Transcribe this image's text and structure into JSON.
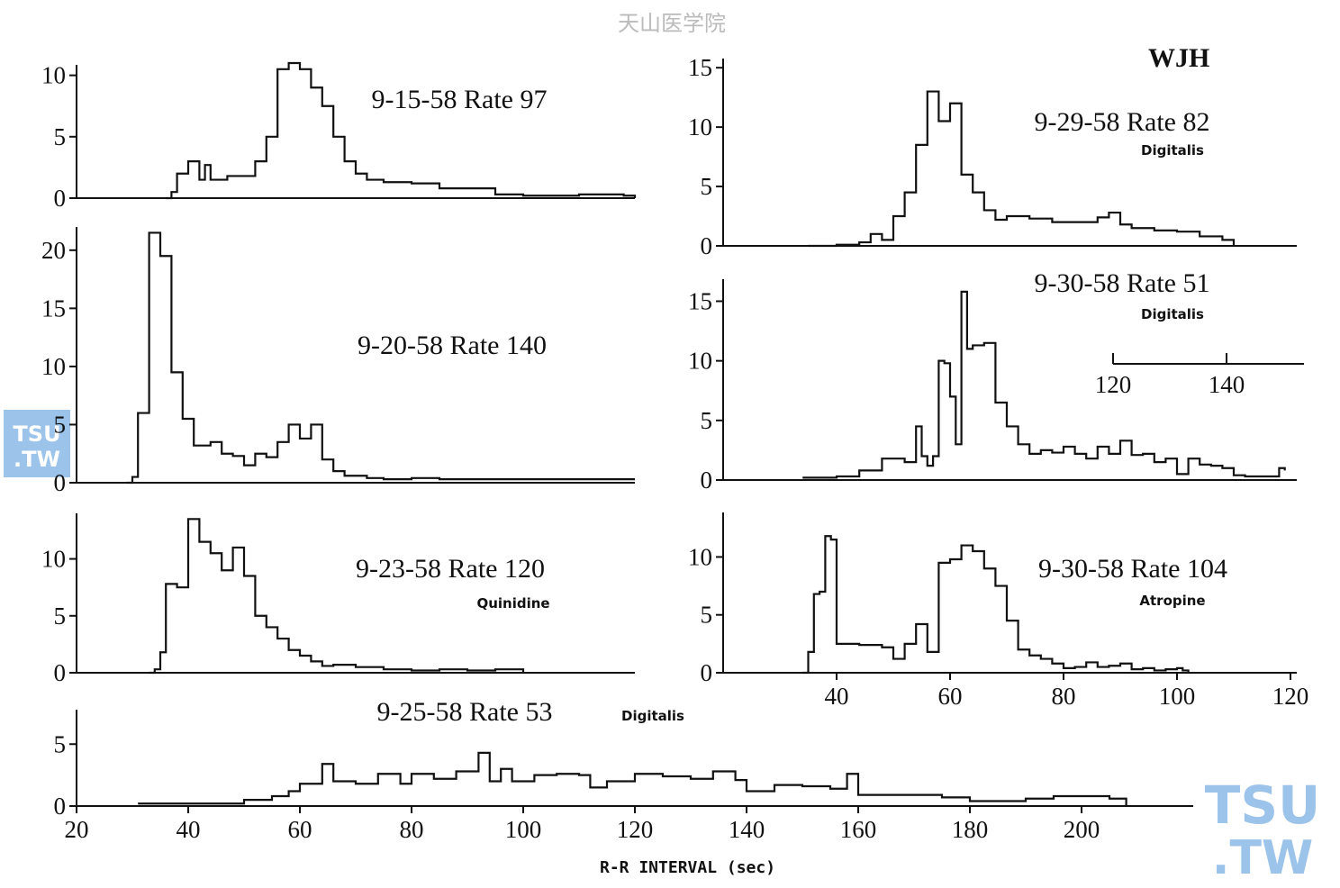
{
  "header": {
    "site_title": "天山医学院",
    "patient_id": "WJH"
  },
  "watermark": {
    "line1": "TSU",
    "line2": ".TW",
    "color": "#9cc3ea"
  },
  "bottom_axis_label": "R-R INTERVAL (sec)",
  "inset_scale": {
    "ticks": [
      "120",
      "140"
    ]
  },
  "chart_data": [
    {
      "type": "area",
      "title": "9-15-58 Rate 97",
      "note": "",
      "ylim": [
        0,
        11
      ],
      "yticks": [
        "0",
        "5",
        "10"
      ],
      "xlim": [
        20,
        120
      ],
      "x": [
        36,
        37,
        38,
        40,
        42,
        43,
        44,
        46,
        47,
        50,
        52,
        54,
        56,
        58,
        60,
        62,
        64,
        66,
        68,
        70,
        72,
        75,
        80,
        85,
        90,
        95,
        100,
        105,
        110,
        115,
        118,
        120
      ],
      "values": [
        0,
        0.5,
        2,
        3,
        1.5,
        2.7,
        1.5,
        1.5,
        1.8,
        1.8,
        3,
        5,
        10.5,
        11,
        10.5,
        9,
        7.5,
        5,
        3,
        2,
        1.5,
        1.3,
        1.2,
        0.8,
        0.8,
        0.3,
        0.2,
        0.2,
        0.3,
        0.3,
        0.2,
        0
      ]
    },
    {
      "type": "area",
      "title": "9-20-58 Rate 140",
      "note": "",
      "ylim": [
        0,
        22
      ],
      "yticks": [
        "0",
        "5",
        "10",
        "15",
        "20"
      ],
      "xlim": [
        20,
        120
      ],
      "x": [
        29,
        30,
        31,
        33,
        35,
        37,
        39,
        41,
        44,
        46,
        48,
        50,
        52,
        54,
        56,
        58,
        60,
        62,
        64,
        66,
        68,
        70,
        72,
        75,
        80,
        85,
        90,
        100,
        110,
        120
      ],
      "values": [
        0,
        0.5,
        6,
        21.5,
        19.5,
        9.5,
        5.5,
        3.2,
        3.5,
        2.5,
        2.3,
        1.5,
        2.5,
        2.2,
        3.5,
        5,
        3.8,
        5,
        2,
        1,
        0.6,
        0.6,
        0.4,
        0.3,
        0.4,
        0.3,
        0.3,
        0.3,
        0.3,
        0.3
      ]
    },
    {
      "type": "area",
      "title": "9-23-58 Rate 120",
      "note": "Quinidine",
      "ylim": [
        0,
        14
      ],
      "yticks": [
        "0",
        "5",
        "10"
      ],
      "xlim": [
        20,
        120
      ],
      "x": [
        33,
        34,
        35,
        36,
        38,
        40,
        42,
        44,
        46,
        48,
        50,
        52,
        54,
        56,
        58,
        60,
        62,
        64,
        66,
        70,
        75,
        80,
        85,
        90,
        95,
        97,
        100
      ],
      "values": [
        0,
        0.3,
        1.8,
        7.8,
        7.5,
        13.5,
        11.5,
        10.5,
        9,
        11,
        8.5,
        5,
        4,
        3,
        2,
        1.5,
        1,
        0.6,
        0.7,
        0.5,
        0.3,
        0.2,
        0.3,
        0.2,
        0.3,
        0.3,
        0
      ]
    },
    {
      "type": "area",
      "title": "9-25-58 Rate 53",
      "note": "Digitalis",
      "ylim": [
        0,
        8
      ],
      "yticks": [
        "0",
        "5"
      ],
      "xlim": [
        20,
        220
      ],
      "xticks": [
        "20",
        "40",
        "60",
        "80",
        "100",
        "120",
        "140",
        "160",
        "180",
        "200"
      ],
      "x": [
        31,
        40,
        50,
        55,
        58,
        60,
        62,
        64,
        66,
        70,
        74,
        78,
        80,
        84,
        88,
        92,
        94,
        96,
        98,
        102,
        106,
        110,
        112,
        115,
        120,
        125,
        130,
        134,
        138,
        140,
        145,
        150,
        155,
        158,
        160,
        165,
        170,
        175,
        180,
        185,
        190,
        195,
        200,
        205,
        208
      ],
      "values": [
        0.2,
        0.2,
        0.5,
        0.8,
        1.2,
        1.8,
        1.8,
        3.4,
        2,
        1.8,
        2.6,
        1.8,
        2.6,
        2.2,
        2.8,
        4.3,
        2,
        3,
        2,
        2.5,
        2.6,
        2.5,
        1.5,
        2,
        2.6,
        2.4,
        2.2,
        2.8,
        2.1,
        1.2,
        1.7,
        1.6,
        1.4,
        2.6,
        0.9,
        0.9,
        0.9,
        0.7,
        0.4,
        0.4,
        0.6,
        0.8,
        0.8,
        0.6,
        0
      ]
    },
    {
      "type": "area",
      "title": "9-29-58 Rate 82",
      "note": "Digitalis",
      "ylim": [
        0,
        16
      ],
      "yticks": [
        "0",
        "5",
        "10",
        "15"
      ],
      "xlim": [
        20,
        120
      ],
      "x": [
        35,
        40,
        44,
        46,
        48,
        50,
        52,
        54,
        56,
        58,
        60,
        62,
        64,
        66,
        68,
        70,
        74,
        78,
        82,
        86,
        88,
        90,
        92,
        96,
        100,
        104,
        108,
        110
      ],
      "values": [
        0,
        0.1,
        0.3,
        1,
        0.5,
        2.5,
        4.5,
        8.5,
        13,
        10.5,
        12,
        6,
        4.5,
        3,
        2.2,
        2.5,
        2.3,
        2,
        2,
        2.4,
        2.8,
        1.8,
        1.5,
        1.3,
        1.2,
        0.8,
        0.5,
        0
      ]
    },
    {
      "type": "area",
      "title": "9-30-58 Rate 51",
      "note": "Digitalis",
      "ylim": [
        0,
        17
      ],
      "yticks": [
        "0",
        "5",
        "10",
        "15"
      ],
      "xlim": [
        20,
        120
      ],
      "x": [
        34,
        40,
        44,
        48,
        52,
        54,
        55,
        56,
        57,
        58,
        59,
        60,
        61,
        62,
        63,
        64,
        66,
        68,
        70,
        72,
        74,
        76,
        78,
        80,
        82,
        84,
        86,
        88,
        90,
        92,
        94,
        96,
        98,
        100,
        102,
        104,
        106,
        108,
        110,
        112,
        116,
        118,
        119
      ],
      "values": [
        0.2,
        0.3,
        0.8,
        1.8,
        1.5,
        4.5,
        2,
        1.2,
        2,
        10,
        9.8,
        7,
        3,
        15.8,
        11,
        11.3,
        11.5,
        6.5,
        4.5,
        3,
        2.2,
        2.5,
        2.3,
        2.8,
        2.2,
        1.8,
        2.8,
        2.2,
        3.3,
        2.1,
        2.2,
        1.5,
        1.8,
        0.5,
        1.8,
        1.3,
        1.2,
        1,
        0.4,
        0.3,
        0.3,
        1,
        0.8
      ]
    },
    {
      "type": "area",
      "title": "9-30-58 Rate 104",
      "note": "Atropine",
      "ylim": [
        0,
        14
      ],
      "yticks": [
        "0",
        "5",
        "10"
      ],
      "xlim": [
        20,
        120
      ],
      "xticks": [
        "40",
        "60",
        "80",
        "100",
        "120"
      ],
      "x": [
        34,
        35,
        36,
        37,
        38,
        39,
        40,
        44,
        48,
        50,
        52,
        54,
        56,
        58,
        60,
        62,
        64,
        66,
        68,
        70,
        72,
        74,
        76,
        78,
        80,
        82,
        84,
        86,
        88,
        90,
        92,
        94,
        96,
        98,
        100,
        101,
        102
      ],
      "values": [
        0,
        1.8,
        6.8,
        7,
        11.8,
        11.5,
        2.5,
        2.4,
        2.2,
        1.2,
        2.5,
        4.2,
        1.8,
        9.5,
        9.8,
        11,
        10.5,
        9,
        7.5,
        4.5,
        2,
        1.5,
        1.2,
        0.8,
        0.4,
        0.5,
        0.9,
        0.5,
        0.6,
        0.8,
        0.3,
        0.4,
        0.2,
        0.3,
        0.4,
        0.2,
        0
      ]
    }
  ]
}
